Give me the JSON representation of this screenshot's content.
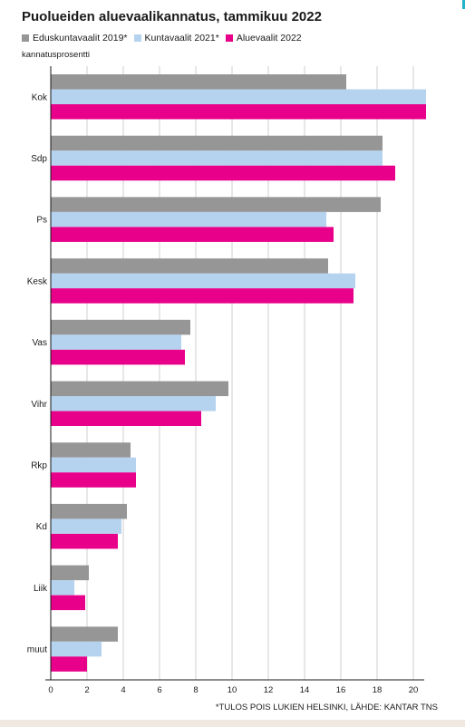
{
  "chart_data": {
    "type": "bar",
    "orientation": "horizontal",
    "title": "Puolueiden aluevaalikannatus, tammikuu 2022",
    "ylabel": "kannatusprosentti",
    "categories": [
      "Kok",
      "Sdp",
      "Ps",
      "Kesk",
      "Vas",
      "Vihr",
      "Rkp",
      "Kd",
      "Liik",
      "muut"
    ],
    "series": [
      {
        "name": "Eduskuntavaalit 2019*",
        "color": "#969696",
        "values": [
          16.3,
          18.3,
          18.2,
          15.3,
          7.7,
          9.8,
          4.4,
          4.2,
          2.1,
          3.7
        ]
      },
      {
        "name": "Kuntavaalit 2021*",
        "color": "#b5d3ee",
        "values": [
          20.7,
          18.3,
          15.2,
          16.8,
          7.2,
          9.1,
          4.7,
          3.9,
          1.3,
          2.8
        ]
      },
      {
        "name": "Aluevaalit 2022",
        "color": "#e8008a",
        "values": [
          20.7,
          19.0,
          15.6,
          16.7,
          7.4,
          8.3,
          4.7,
          3.7,
          1.9,
          2.0
        ]
      }
    ],
    "xlim": [
      0,
      21
    ],
    "xticks": [
      0,
      2,
      4,
      6,
      8,
      10,
      12,
      14,
      16,
      18,
      20
    ],
    "grid": true,
    "legend": "top-left",
    "footnote": "*TULOS POIS LUKIEN HELSINKI, LÄHDE: KANTAR TNS"
  }
}
